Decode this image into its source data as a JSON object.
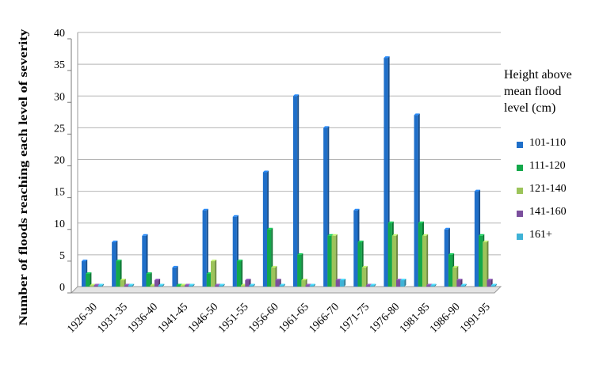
{
  "chart_data": {
    "type": "bar",
    "title": "",
    "xlabel": "",
    "ylabel": "Number of floods reaching each level of severity",
    "ylim": [
      0,
      40
    ],
    "yticks": [
      "0",
      "5",
      "10",
      "15",
      "20",
      "25",
      "30",
      "35",
      "40"
    ],
    "grid": true,
    "legend_position": "right",
    "categories": [
      "1926-30",
      "1931-35",
      "1936-40",
      "1941-45",
      "1946-50",
      "1951-55",
      "1956-60",
      "1961-65",
      "1966-70",
      "1971-75",
      "1976-80",
      "1981-85",
      "1986-90",
      "1991-95"
    ],
    "legend_title": "Height above mean flood level (cm)",
    "legend_title_lines": [
      "Height above",
      "mean flood",
      "level (cm)"
    ],
    "series": [
      {
        "name": "101-110",
        "color": "#1f6fc9",
        "values": [
          4,
          7,
          8,
          3,
          12,
          11,
          18,
          30,
          25,
          12,
          36,
          27,
          9,
          15
        ]
      },
      {
        "name": "111-120",
        "color": "#13a84a",
        "values": [
          2,
          4,
          2,
          0,
          2,
          4,
          9,
          5,
          8,
          7,
          10,
          10,
          5,
          8
        ]
      },
      {
        "name": "121-140",
        "color": "#9cc45a",
        "values": [
          0,
          1,
          0,
          0,
          4,
          0,
          3,
          1,
          8,
          3,
          8,
          8,
          3,
          7
        ]
      },
      {
        "name": "141-160",
        "color": "#7b4f9d",
        "values": [
          0,
          0,
          1,
          0,
          0,
          1,
          1,
          0,
          1,
          0,
          1,
          0,
          1,
          1
        ]
      },
      {
        "name": "161+",
        "color": "#3fb2d6",
        "values": [
          0,
          0,
          0,
          0,
          0,
          0,
          0,
          0,
          1,
          0,
          1,
          0,
          0,
          0
        ]
      }
    ]
  }
}
